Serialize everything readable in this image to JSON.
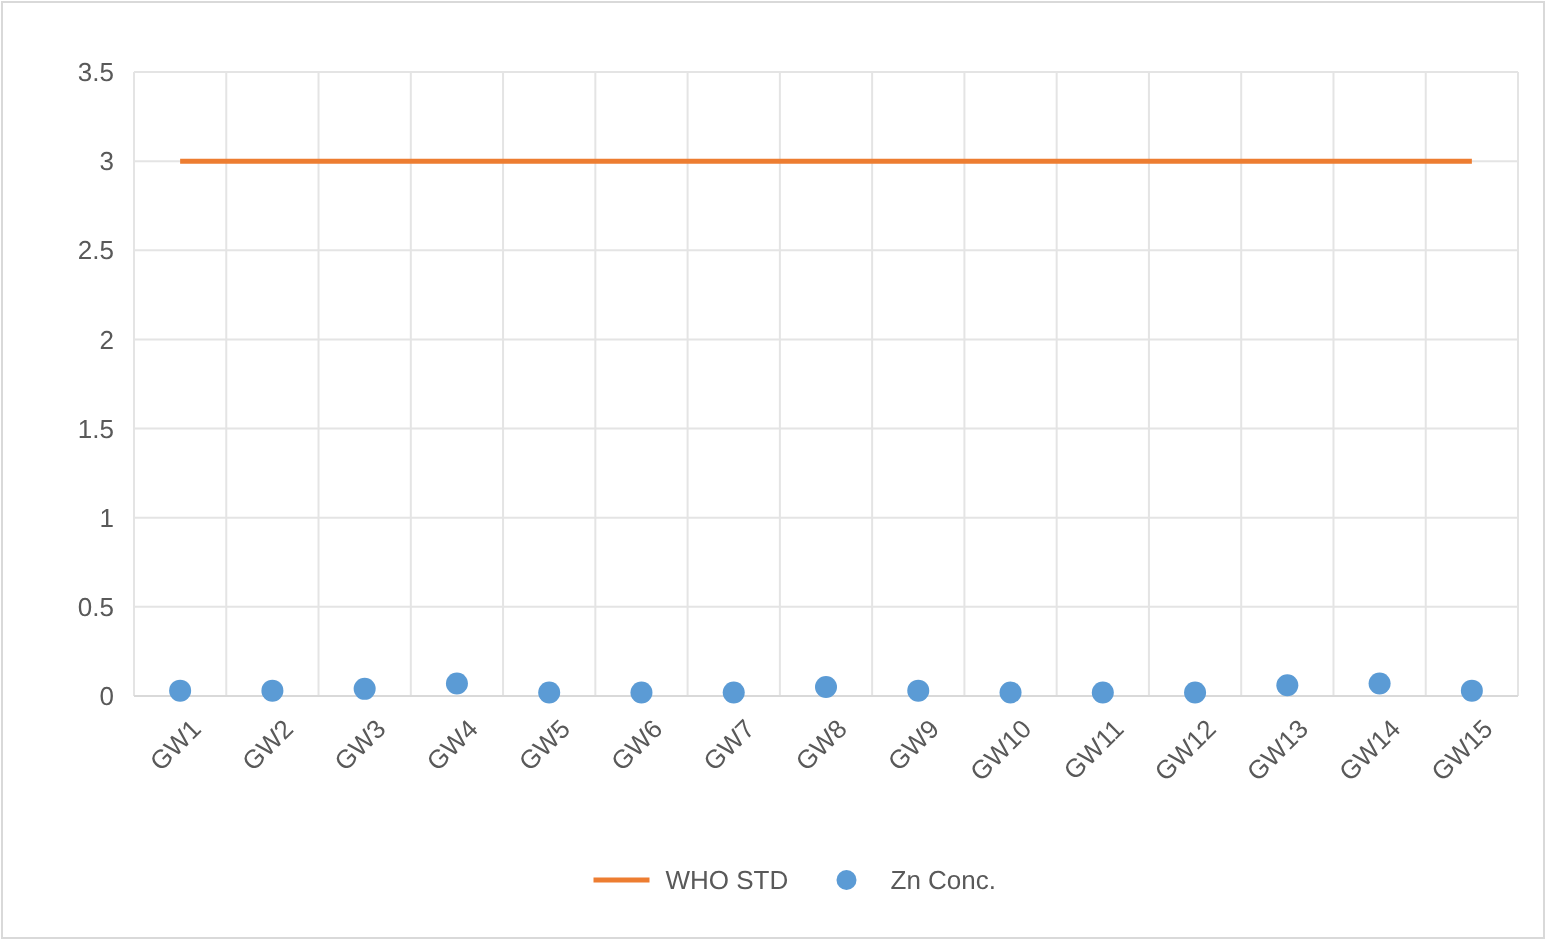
{
  "chart_data": {
    "type": "line",
    "categories": [
      "GW1",
      "GW2",
      "GW3",
      "GW4",
      "GW5",
      "GW6",
      "GW7",
      "GW8",
      "GW9",
      "GW10",
      "GW11",
      "GW12",
      "GW13",
      "GW14",
      "GW15"
    ],
    "series": [
      {
        "name": "WHO STD",
        "color": "#ed7d31",
        "values": [
          3,
          3,
          3,
          3,
          3,
          3,
          3,
          3,
          3,
          3,
          3,
          3,
          3,
          3,
          3
        ]
      },
      {
        "name": "Zn Conc.",
        "type": "scatter",
        "color": "#5b9bd5",
        "marker": "circle",
        "values": [
          0.03,
          0.03,
          0.04,
          0.07,
          0.02,
          0.02,
          0.02,
          0.05,
          0.03,
          0.02,
          0.02,
          0.02,
          0.06,
          0.07,
          0.03
        ]
      }
    ],
    "ylim": [
      0,
      3.5
    ],
    "yticks": [
      0,
      0.5,
      1,
      1.5,
      2,
      2.5,
      3,
      3.5
    ],
    "grid": true,
    "legend": "bottom"
  }
}
